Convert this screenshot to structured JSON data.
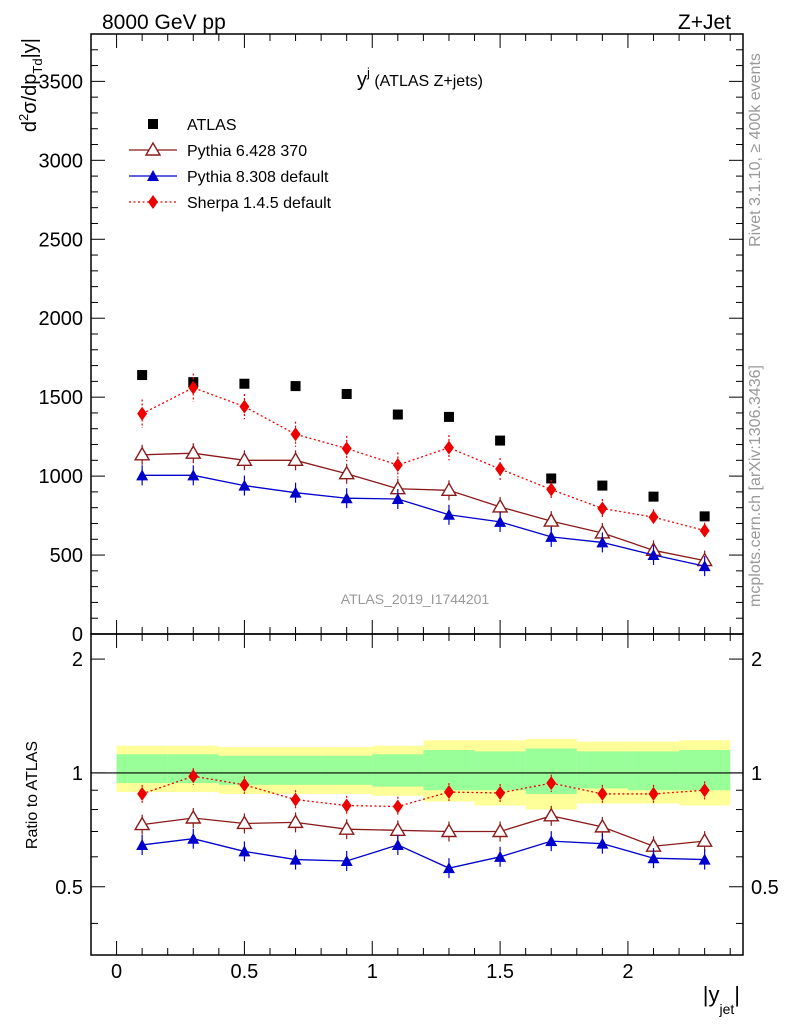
{
  "header": {
    "left": "8000 GeV pp",
    "right": "Z+Jet"
  },
  "side_text": {
    "rivet": "Rivet 3.1.10, ≥ 400k events",
    "mcplots": "mcplots.cern.ch [arXiv:1306.3436]"
  },
  "chart_data": [
    {
      "type": "scatter",
      "panel": "main",
      "title": "y^j (ATLAS Z+jets)",
      "title_main": "y",
      "title_sup": "j",
      "title_rest": " (ATLAS Z+jets)",
      "ylabel": "d²σ/dp_Td|y|",
      "watermark": "ATLAS_2019_I1744201",
      "xlim": [
        -0.1,
        2.45
      ],
      "ylim": [
        0,
        3800
      ],
      "yticks": [
        0,
        500,
        1000,
        1500,
        2000,
        2500,
        3000,
        3500
      ],
      "ytick_labels": [
        "0",
        "500",
        "1000",
        "1500",
        "2000",
        "2500",
        "3000",
        "3500"
      ],
      "x": [
        0.1,
        0.3,
        0.5,
        0.7,
        0.9,
        1.1,
        1.3,
        1.5,
        1.7,
        1.9,
        2.1,
        2.3
      ],
      "series": [
        {
          "name": "ATLAS",
          "color": "#000000",
          "marker": "square",
          "values": [
            1640,
            1595,
            1585,
            1570,
            1520,
            1390,
            1375,
            1225,
            985,
            940,
            870,
            745
          ]
        },
        {
          "name": "Pythia 6.428 370",
          "color": "#8b1a1a",
          "marker": "open-triangle",
          "values": [
            1135,
            1145,
            1100,
            1100,
            1015,
            920,
            910,
            805,
            715,
            640,
            530,
            465
          ]
        },
        {
          "name": "Pythia 8.308 default",
          "color": "#0000cc",
          "marker": "filled-triangle",
          "values": [
            1005,
            1005,
            940,
            895,
            860,
            855,
            755,
            710,
            615,
            580,
            500,
            430
          ]
        },
        {
          "name": "Sherpa 1.4.5 default",
          "color": "#ee0000",
          "marker": "diamond",
          "values": [
            1395,
            1560,
            1440,
            1265,
            1175,
            1070,
            1180,
            1045,
            915,
            795,
            740,
            655
          ],
          "errors": [
            90,
            90,
            80,
            80,
            80,
            80,
            80,
            70,
            60,
            60,
            50,
            50
          ]
        }
      ]
    },
    {
      "type": "line",
      "panel": "ratio",
      "ylabel": "Ratio to ATLAS",
      "xlabel": "|y_jet|",
      "xlim": [
        -0.1,
        2.45
      ],
      "ylim": [
        0.33,
        2.33
      ],
      "yticks": [
        0.5,
        1,
        2
      ],
      "ytick_labels": [
        "0.5",
        "1",
        "2"
      ],
      "xticks": [
        0,
        0.5,
        1,
        1.5,
        2
      ],
      "xtick_labels": [
        "0",
        "0.5",
        "1",
        "1.5",
        "2"
      ],
      "x": [
        0.1,
        0.3,
        0.5,
        0.7,
        0.9,
        1.1,
        1.3,
        1.5,
        1.7,
        1.9,
        2.1,
        2.3
      ],
      "bands": {
        "edges": [
          0.0,
          0.2,
          0.4,
          0.6,
          0.8,
          1.0,
          1.2,
          1.4,
          1.6,
          1.8,
          2.0,
          2.2,
          2.4
        ],
        "yellow_up": [
          1.18,
          1.18,
          1.17,
          1.17,
          1.17,
          1.18,
          1.22,
          1.22,
          1.23,
          1.21,
          1.21,
          1.22
        ],
        "yellow_dn": [
          0.89,
          0.89,
          0.88,
          0.88,
          0.88,
          0.87,
          0.84,
          0.82,
          0.8,
          0.83,
          0.83,
          0.82
        ],
        "green_up": [
          1.12,
          1.12,
          1.11,
          1.11,
          1.11,
          1.12,
          1.15,
          1.14,
          1.16,
          1.14,
          1.14,
          1.15
        ],
        "green_dn": [
          0.94,
          0.94,
          0.93,
          0.93,
          0.93,
          0.92,
          0.9,
          0.9,
          0.88,
          0.91,
          0.9,
          0.9
        ]
      },
      "series": [
        {
          "name": "Pythia 6.428 370",
          "color": "#8b1a1a",
          "marker": "open-triangle",
          "values": [
            0.73,
            0.76,
            0.735,
            0.74,
            0.71,
            0.705,
            0.7,
            0.7,
            0.77,
            0.72,
            0.64,
            0.66
          ]
        },
        {
          "name": "Pythia 8.308 default",
          "color": "#0000cc",
          "marker": "filled-triangle",
          "values": [
            0.645,
            0.67,
            0.62,
            0.59,
            0.585,
            0.645,
            0.56,
            0.6,
            0.66,
            0.65,
            0.595,
            0.59
          ]
        },
        {
          "name": "Sherpa 1.4.5 default",
          "color": "#ee0000",
          "marker": "diamond",
          "values": [
            0.88,
            0.98,
            0.93,
            0.85,
            0.82,
            0.815,
            0.89,
            0.885,
            0.94,
            0.88,
            0.88,
            0.9
          ],
          "errors": [
            0.05,
            0.05,
            0.05,
            0.05,
            0.05,
            0.05,
            0.05,
            0.05,
            0.05,
            0.05,
            0.05,
            0.05
          ]
        }
      ]
    }
  ]
}
